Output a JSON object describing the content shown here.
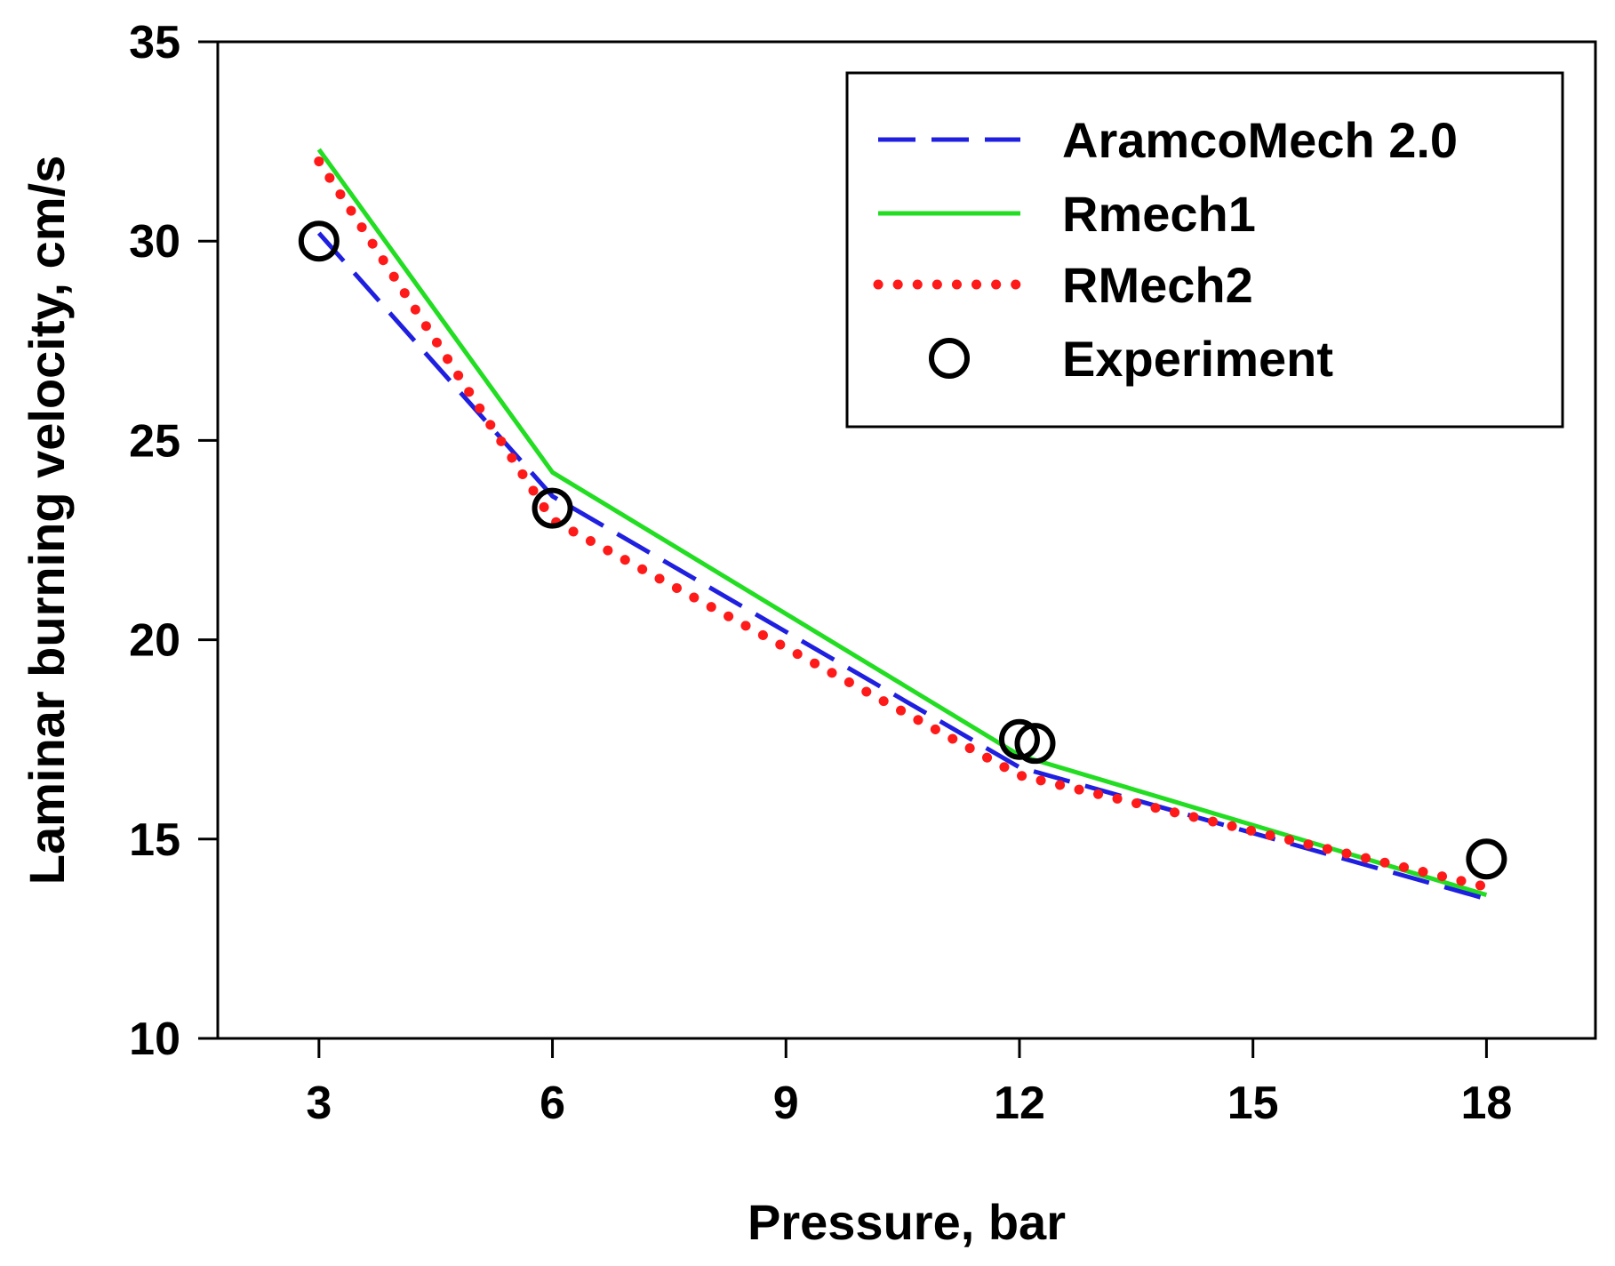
{
  "chart_data": {
    "type": "line",
    "title": "",
    "xlabel": "Pressure, bar",
    "ylabel": "Laminar burning velocity, cm/s",
    "xlim": [
      1.7,
      19.4
    ],
    "ylim": [
      10,
      35
    ],
    "xticks": [
      3,
      6,
      9,
      12,
      15,
      18
    ],
    "yticks": [
      10,
      15,
      20,
      25,
      30,
      35
    ],
    "grid": false,
    "legend_position": "top-right",
    "series": [
      {
        "name": "AramcoMech 2.0",
        "style": "dashed",
        "color": "#1f1fe0",
        "x": [
          3,
          6,
          12,
          18
        ],
        "y": [
          30.2,
          23.6,
          16.8,
          13.5
        ]
      },
      {
        "name": "Rmech1",
        "style": "solid",
        "color": "#22dd22",
        "x": [
          3,
          6,
          12,
          18
        ],
        "y": [
          32.3,
          24.2,
          17.1,
          13.6
        ]
      },
      {
        "name": "RMech2",
        "style": "dotted",
        "color": "#ff1a1a",
        "x": [
          3,
          6,
          12,
          18
        ],
        "y": [
          32.0,
          23.0,
          16.6,
          13.8
        ]
      },
      {
        "name": "Experiment",
        "style": "markers",
        "marker": "open-circle",
        "color": "#000000",
        "x": [
          3,
          6,
          12,
          12.2,
          18
        ],
        "y": [
          30.0,
          23.3,
          17.5,
          17.4,
          14.5
        ]
      }
    ]
  }
}
